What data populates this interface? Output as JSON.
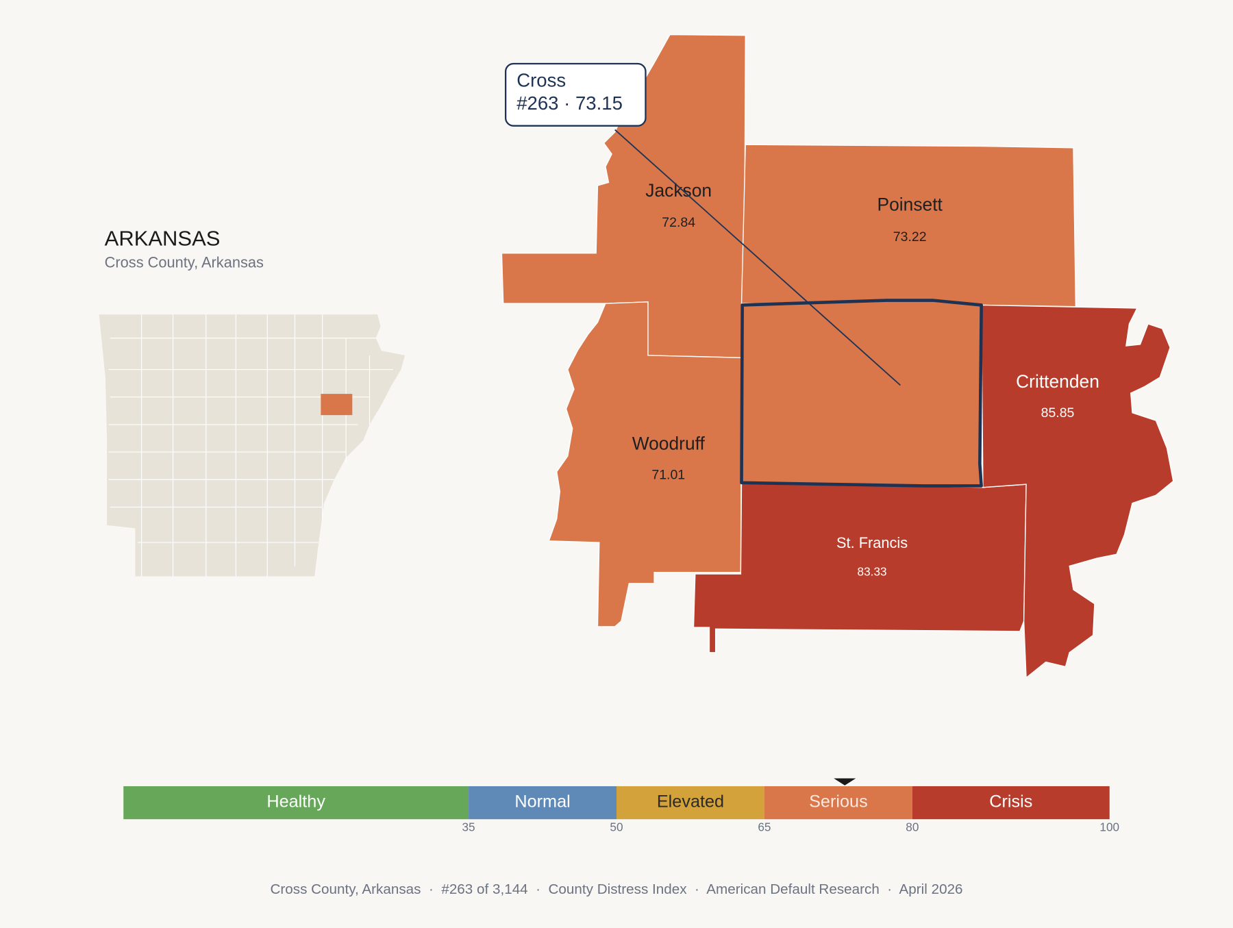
{
  "header": {
    "title": "ARKANSAS",
    "subtitle": "Cross County, Arkansas"
  },
  "counties": [
    {
      "name": "Jackson",
      "score": 72.84,
      "color": "#d9764a",
      "text_color": "#1f1f1f"
    },
    {
      "name": "Poinsett",
      "score": 73.22,
      "color": "#d9764a",
      "text_color": "#1f1f1f"
    },
    {
      "name": "Woodruff",
      "score": 71.01,
      "color": "#d9764a",
      "text_color": "#1f1f1f"
    },
    {
      "name": "St. Francis",
      "score": 83.33,
      "color": "#b83c2b",
      "text_color": "#ffffff"
    },
    {
      "name": "Crittenden",
      "score": 85.85,
      "color": "#b83c2b",
      "text_color": "#ffffff"
    },
    {
      "name": "Cross",
      "score": 73.15,
      "color": "#d9764a"
    }
  ],
  "callout": {
    "name": "Cross",
    "label": "#263 · 73.15"
  },
  "scale": {
    "range": [
      0,
      100
    ],
    "ticks": [
      35,
      50,
      65,
      80,
      100
    ],
    "marker": 73.15,
    "bands": [
      {
        "name": "Healthy",
        "color": "#67a75a",
        "text_color": "#ffffff"
      },
      {
        "name": "Normal",
        "color": "#5f8ab8",
        "text_color": "#ffffff"
      },
      {
        "name": "Elevated",
        "color": "#d4a23a",
        "text_color": "#2a2a2a"
      },
      {
        "name": "Serious",
        "color": "#d9764a",
        "text_color": "#fbe9df"
      },
      {
        "name": "Crisis",
        "color": "#b83c2b",
        "text_color": "#ffffff"
      }
    ]
  },
  "footer": "Cross County, Arkansas  ·  #263 of 3,144  ·  County Distress Index  ·  American Default Research  ·  April 2026"
}
